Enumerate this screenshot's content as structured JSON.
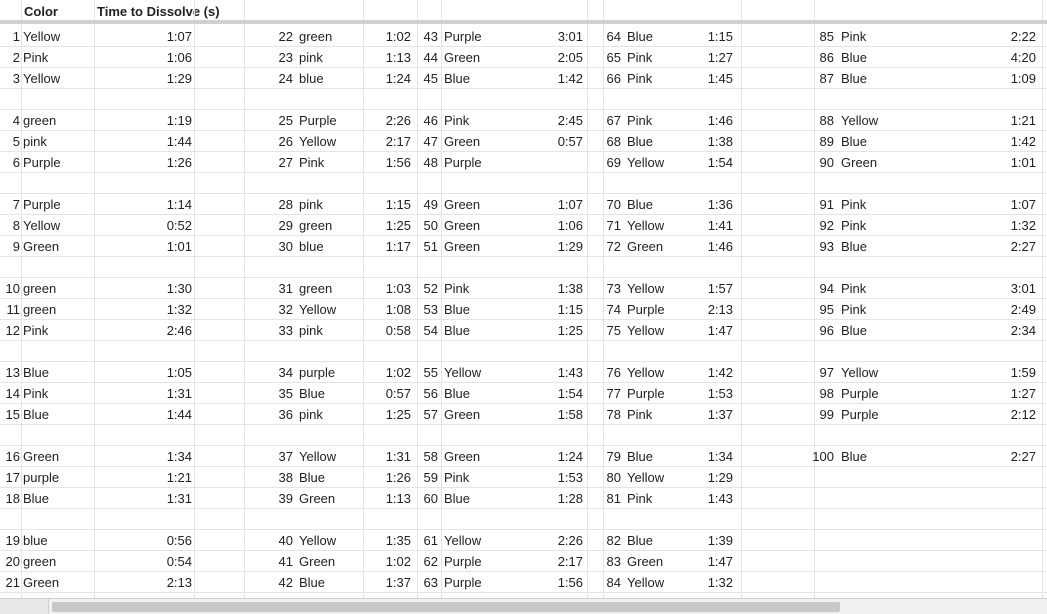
{
  "header": {
    "color_label": "Color",
    "time_label": "Time to Dissolve (s)"
  },
  "blocks": [
    [
      [
        "1",
        "Yellow",
        "1:07",
        "22",
        "green",
        "1:02",
        "43",
        "Purple",
        "3:01",
        "64",
        "Blue",
        "1:15",
        "85",
        "Pink",
        "2:22"
      ],
      [
        "2",
        "Pink",
        "1:06",
        "23",
        "pink",
        "1:13",
        "44",
        "Green",
        "2:05",
        "65",
        "Pink",
        "1:27",
        "86",
        "Blue",
        "4:20"
      ],
      [
        "3",
        "Yellow",
        "1:29",
        "24",
        "blue",
        "1:24",
        "45",
        "Blue",
        "1:42",
        "66",
        "Pink",
        "1:45",
        "87",
        "Blue",
        "1:09"
      ]
    ],
    [
      [
        "4",
        "green",
        "1:19",
        "25",
        "Purple",
        "2:26",
        "46",
        "Pink",
        "2:45",
        "67",
        "Pink",
        "1:46",
        "88",
        "Yellow",
        "1:21"
      ],
      [
        "5",
        "pink",
        "1:44",
        "26",
        "Yellow",
        "2:17",
        "47",
        "Green",
        "0:57",
        "68",
        "Blue",
        "1:38",
        "89",
        "Blue",
        "1:42"
      ],
      [
        "6",
        "Purple",
        "1:26",
        "27",
        "Pink",
        "1:56",
        "48",
        "Purple",
        "",
        "69",
        "Yellow",
        "1:54",
        "90",
        "Green",
        "1:01"
      ]
    ],
    [
      [
        "7",
        "Purple",
        "1:14",
        "28",
        "pink",
        "1:15",
        "49",
        "Green",
        "1:07",
        "70",
        "Blue",
        "1:36",
        "91",
        "Pink",
        "1:07"
      ],
      [
        "8",
        "Yellow",
        "0:52",
        "29",
        "green",
        "1:25",
        "50",
        "Green",
        "1:06",
        "71",
        "Yellow",
        "1:41",
        "92",
        "Pink",
        "1:32"
      ],
      [
        "9",
        "Green",
        "1:01",
        "30",
        "blue",
        "1:17",
        "51",
        "Green",
        "1:29",
        "72",
        "Green",
        "1:46",
        "93",
        "Blue",
        "2:27"
      ]
    ],
    [
      [
        "10",
        "green",
        "1:30",
        "31",
        "green",
        "1:03",
        "52",
        "Pink",
        "1:38",
        "73",
        "Yellow",
        "1:57",
        "94",
        "Pink",
        "3:01"
      ],
      [
        "11",
        "green",
        "1:32",
        "32",
        "Yellow",
        "1:08",
        "53",
        "Blue",
        "1:15",
        "74",
        "Purple",
        "2:13",
        "95",
        "Pink",
        "2:49"
      ],
      [
        "12",
        "Pink",
        "2:46",
        "33",
        "pink",
        "0:58",
        "54",
        "Blue",
        "1:25",
        "75",
        "Yellow",
        "1:47",
        "96",
        "Blue",
        "2:34"
      ]
    ],
    [
      [
        "13",
        "Blue",
        "1:05",
        "34",
        "purple",
        "1:02",
        "55",
        "Yellow",
        "1:43",
        "76",
        "Yellow",
        "1:42",
        "97",
        "Yellow",
        "1:59"
      ],
      [
        "14",
        "Pink",
        "1:31",
        "35",
        "Blue",
        "0:57",
        "56",
        "Blue",
        "1:54",
        "77",
        "Purple",
        "1:53",
        "98",
        "Purple",
        "1:27"
      ],
      [
        "15",
        "Blue",
        "1:44",
        "36",
        "pink",
        "1:25",
        "57",
        "Green",
        "1:58",
        "78",
        "Pink",
        "1:37",
        "99",
        "Purple",
        "2:12"
      ]
    ],
    [
      [
        "16",
        "Green",
        "1:34",
        "37",
        "Yellow",
        "1:31",
        "58",
        "Green",
        "1:24",
        "79",
        "Blue",
        "1:34",
        "100",
        "Blue",
        "2:27"
      ],
      [
        "17",
        "purple",
        "1:21",
        "38",
        "Blue",
        "1:26",
        "59",
        "Pink",
        "1:53",
        "80",
        "Yellow",
        "1:29",
        "",
        "",
        ""
      ],
      [
        "18",
        "Blue",
        "1:31",
        "39",
        "Green",
        "1:13",
        "60",
        "Blue",
        "1:28",
        "81",
        "Pink",
        "1:43",
        "",
        "",
        ""
      ]
    ],
    [
      [
        "19",
        "blue",
        "0:56",
        "40",
        "Yellow",
        "1:35",
        "61",
        "Yellow",
        "2:26",
        "82",
        "Blue",
        "1:39",
        "",
        "",
        ""
      ],
      [
        "20",
        "green",
        "0:54",
        "41",
        "Green",
        "1:02",
        "62",
        "Purple",
        "2:17",
        "83",
        "Green",
        "1:47",
        "",
        "",
        ""
      ],
      [
        "21",
        "Green",
        "2:13",
        "42",
        "Blue",
        "1:37",
        "63",
        "Purple",
        "1:56",
        "84",
        "Yellow",
        "1:32",
        "",
        "",
        ""
      ]
    ]
  ]
}
